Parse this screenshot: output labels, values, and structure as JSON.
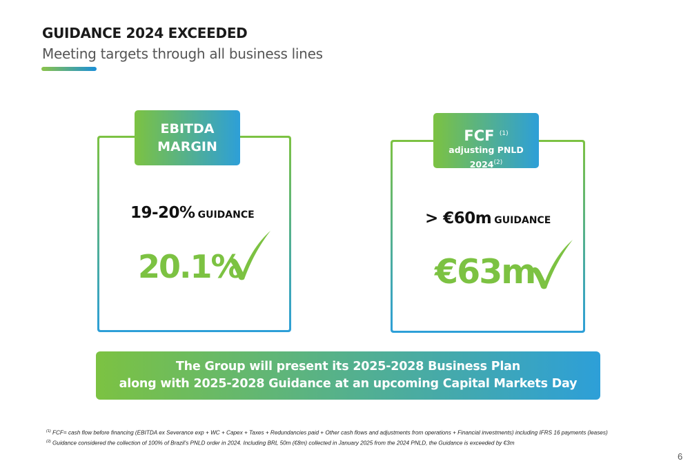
{
  "header": {
    "title": "GUIDANCE 2024 EXCEEDED",
    "subtitle": "Meeting targets through all business lines"
  },
  "cards": [
    {
      "tag_line1": "EBITDA",
      "tag_line2": "MARGIN",
      "guidance_value": "19-20%",
      "guidance_label": "GUIDANCE",
      "result": "20.1%"
    },
    {
      "tag_line1": "FCF",
      "tag_line1_note": "(1)",
      "tag_line2": "adjusting PNLD 2024",
      "tag_line2_note": "(2)",
      "guidance_value": "> €60m",
      "guidance_label": "GUIDANCE",
      "result": "€63m"
    }
  ],
  "banner": {
    "line1": "The Group will present its 2025-2028 Business Plan",
    "line2": "along with 2025-2028 Guidance at an upcoming Capital Markets Day"
  },
  "footnotes": [
    {
      "marker": "(1)",
      "text": "FCF= cash flow before financing (EBITDA ex Severance exp + WC + Capex + Taxes + Redundancies paid + Other cash flows and adjustments from operations + Financial investments) including IFRS 16 payments (leases)"
    },
    {
      "marker": "(2)",
      "text": "Guidance considered the collection of 100% of Brazil's PNLD order in 2024. Including BRL 50m (€8m) collected in January 2025 from the 2024 PNLD, the Guidance is exceeded by €3m"
    }
  ],
  "page_number": "6",
  "colors": {
    "green": "#7cc242",
    "blue": "#2d9fd8",
    "title": "#1a1a1a"
  }
}
